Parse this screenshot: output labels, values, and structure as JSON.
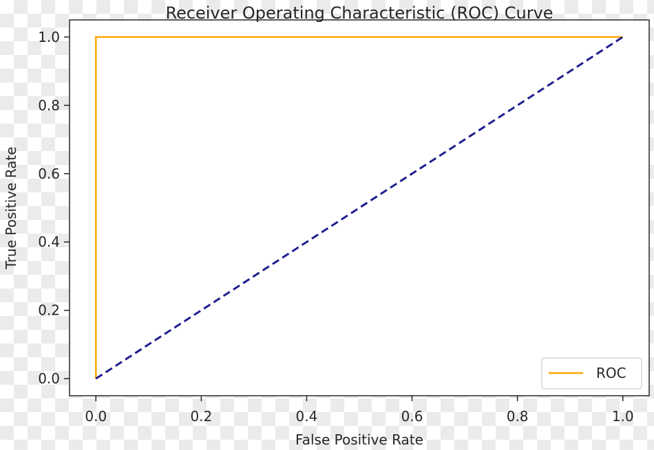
{
  "chart_data": {
    "type": "line",
    "title": "Receiver Operating Characteristic (ROC) Curve",
    "xlabel": "False Positive Rate",
    "ylabel": "True Positive Rate",
    "xlim": [
      -0.05,
      1.05
    ],
    "ylim": [
      -0.05,
      1.05
    ],
    "xticks": [
      0.0,
      0.2,
      0.4,
      0.6,
      0.8,
      1.0
    ],
    "yticks": [
      0.0,
      0.2,
      0.4,
      0.6,
      0.8,
      1.0
    ],
    "xtick_labels": [
      "0.0",
      "0.2",
      "0.4",
      "0.6",
      "0.8",
      "1.0"
    ],
    "ytick_labels": [
      "0.0",
      "0.2",
      "0.4",
      "0.6",
      "0.8",
      "1.0"
    ],
    "grid": false,
    "legend_position": "lower-right",
    "series": [
      {
        "name": "ROC",
        "color": "#ffa500",
        "style": "solid",
        "x": [
          0.0,
          0.0,
          1.0
        ],
        "y": [
          0.0,
          1.0,
          1.0
        ],
        "in_legend": true
      },
      {
        "color": "#1f1f8f",
        "style": "dashed",
        "x": [
          0.0,
          1.0
        ],
        "y": [
          0.0,
          1.0
        ],
        "in_legend": false
      }
    ]
  }
}
